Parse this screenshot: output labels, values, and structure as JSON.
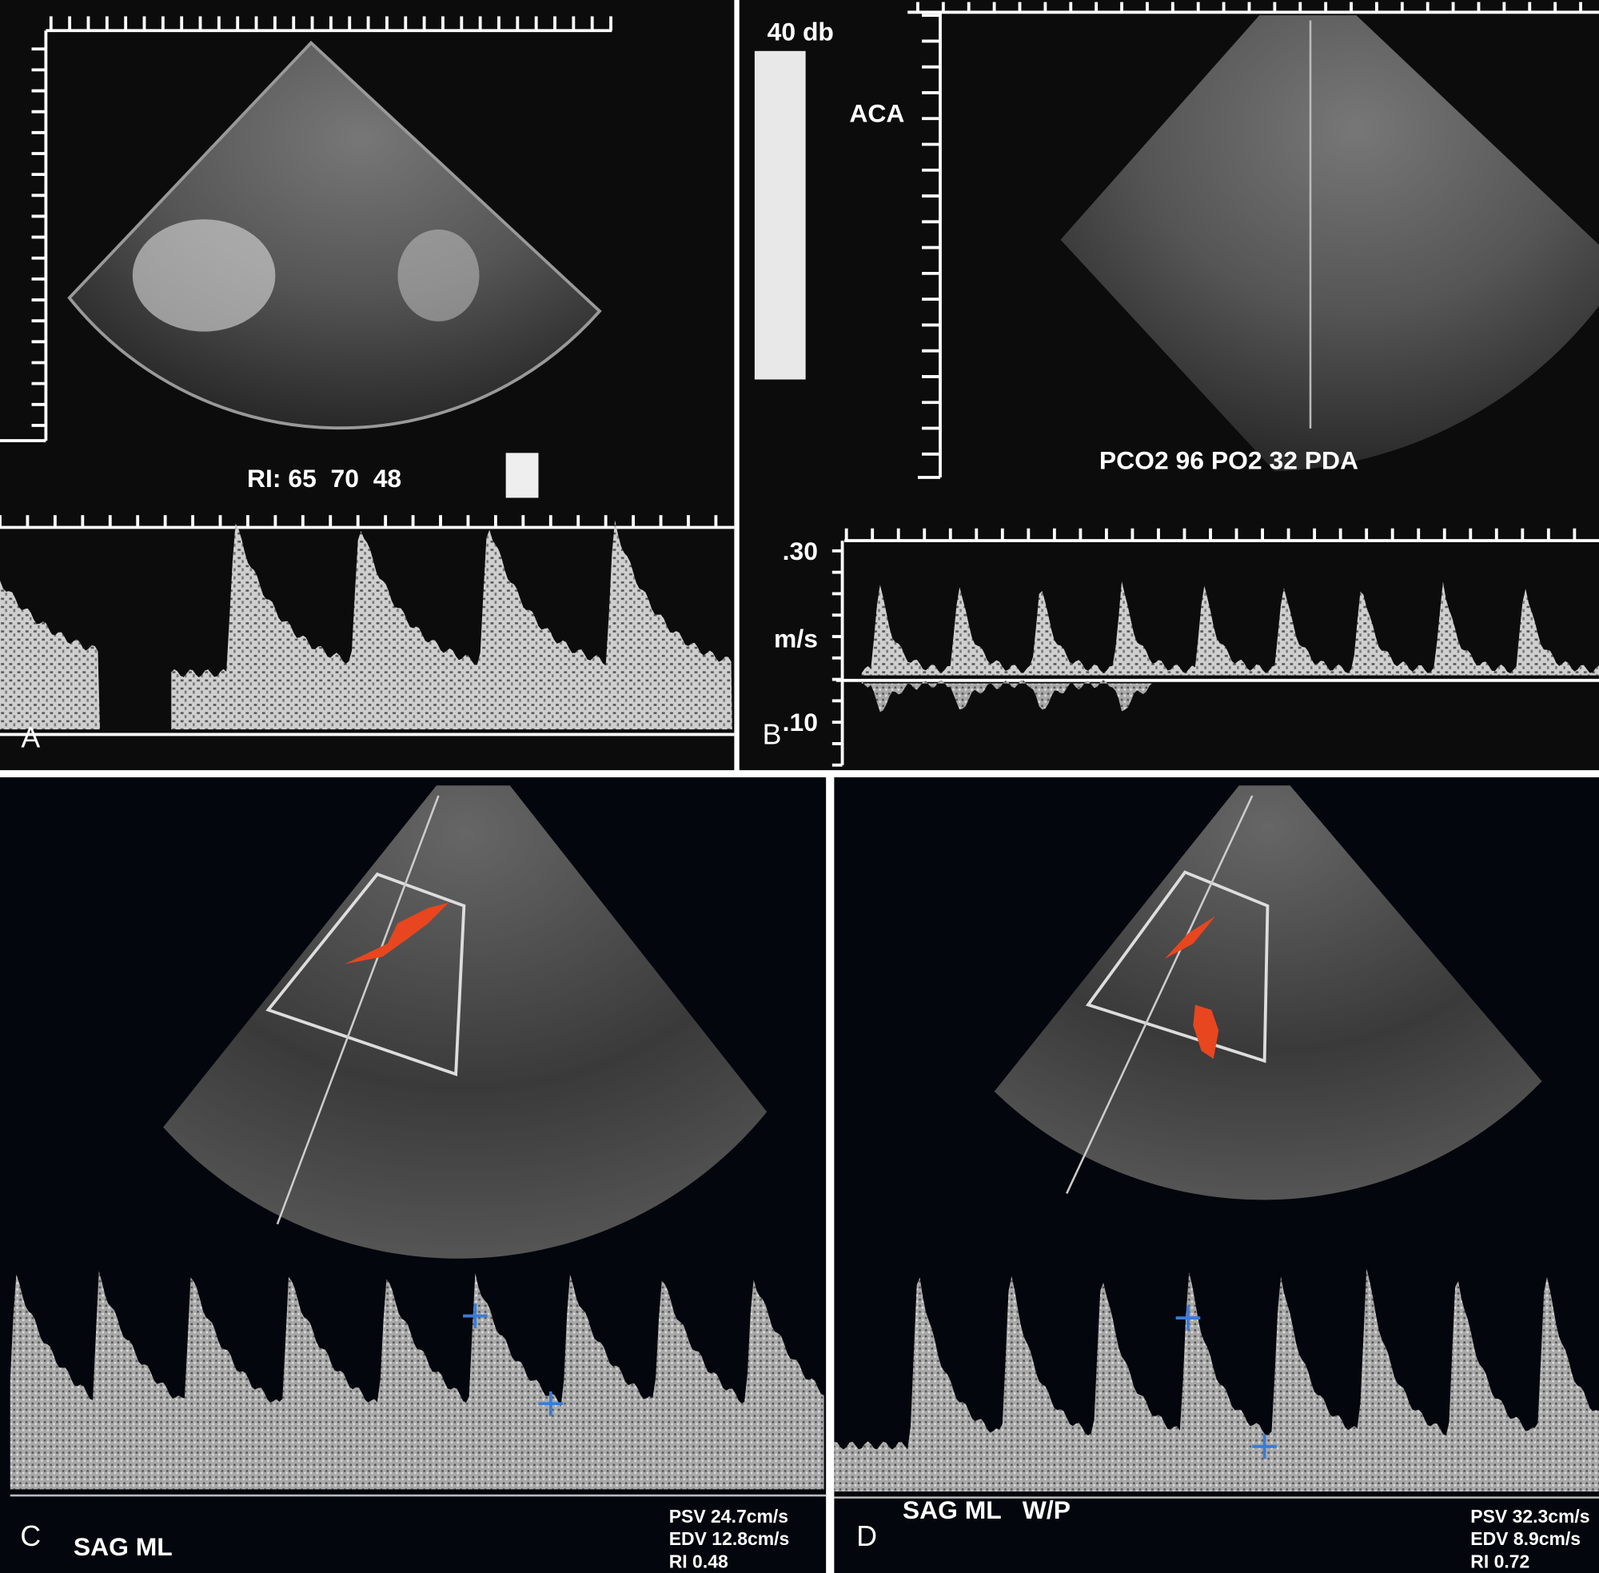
{
  "panels": [
    {
      "label": "A",
      "texts": [
        "RI: 65  70  48"
      ]
    },
    {
      "label": "B",
      "texts": [
        "40 db",
        "ACA",
        "PCO2 96 PO2 32 PDA",
        ".30",
        "m/s",
        ".10"
      ]
    },
    {
      "label": "C",
      "mode": "SAG ML",
      "measurements": [
        "PSV 24.7cm/s",
        "EDV 12.8cm/s",
        "RI 0.48"
      ]
    },
    {
      "label": "D",
      "mode": "SAG ML   W/P",
      "measurements": [
        "PSV 32.3cm/s",
        "EDV 8.9cm/s",
        "RI 0.72"
      ]
    }
  ]
}
